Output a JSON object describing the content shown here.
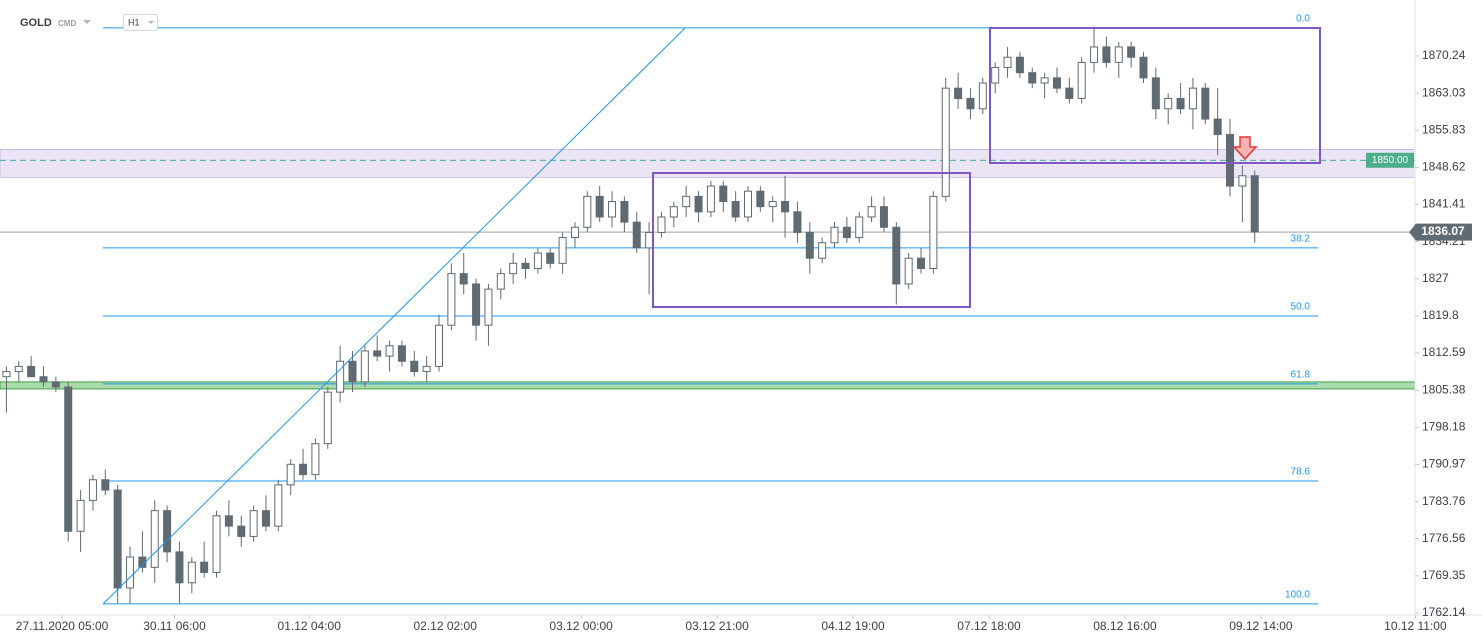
{
  "chart_data": {
    "type": "candlestick",
    "title": "GOLD",
    "subtitle": "CMD",
    "interval": "H1",
    "up_color": "#ffffff",
    "down_color": "#5f6a72",
    "xlim": [
      -0.52,
      114
    ],
    "ylim": [
      1761.75,
      1881.11
    ],
    "yticks": [
      1870.24,
      1863.03,
      1855.83,
      1848.62,
      1841.41,
      1834.21,
      1827.0,
      1819.8,
      1812.59,
      1805.38,
      1798.18,
      1790.97,
      1783.76,
      1776.56,
      1769.35,
      1762.14
    ],
    "xticks": [
      {
        "value": 4.5,
        "label": "27.11.2020 05:00"
      },
      {
        "value": 13.6,
        "label": "30.11 06:00"
      },
      {
        "value": 24.5,
        "label": "01.12 04:00"
      },
      {
        "value": 35.5,
        "label": "02.12 02:00"
      },
      {
        "value": 46.5,
        "label": "03.12 00:00"
      },
      {
        "value": 57.5,
        "label": "03.12 21:00"
      },
      {
        "value": 68.5,
        "label": "04.12 19:00"
      },
      {
        "value": 79.5,
        "label": "07.12 18:00"
      },
      {
        "value": 90.5,
        "label": "08.12 16:00"
      },
      {
        "value": 101.5,
        "label": "09.12 14:00"
      },
      {
        "value": 114,
        "label": "10.12 11:00"
      }
    ],
    "ohlc": [
      [
        1808,
        1810,
        1801,
        1809
      ],
      [
        1809,
        1811,
        1807,
        1810
      ],
      [
        1810,
        1812,
        1808,
        1808
      ],
      [
        1808,
        1810,
        1806,
        1807
      ],
      [
        1807,
        1808,
        1805,
        1806
      ],
      [
        1806,
        1807,
        1776,
        1778
      ],
      [
        1778,
        1786,
        1774,
        1784
      ],
      [
        1784,
        1789,
        1782,
        1788
      ],
      [
        1788,
        1790,
        1785,
        1786
      ],
      [
        1786,
        1787,
        1764,
        1767
      ],
      [
        1767,
        1775,
        1764,
        1773
      ],
      [
        1773,
        1778,
        1770,
        1771
      ],
      [
        1771,
        1784,
        1768,
        1782
      ],
      [
        1782,
        1783,
        1772,
        1774
      ],
      [
        1774,
        1776,
        1764,
        1768
      ],
      [
        1768,
        1773,
        1766,
        1772
      ],
      [
        1772,
        1776,
        1769,
        1770
      ],
      [
        1770,
        1782,
        1769,
        1781
      ],
      [
        1781,
        1784,
        1777,
        1779
      ],
      [
        1779,
        1781,
        1775,
        1777
      ],
      [
        1777,
        1783,
        1776,
        1782
      ],
      [
        1782,
        1785,
        1778,
        1779
      ],
      [
        1779,
        1788,
        1778,
        1787
      ],
      [
        1787,
        1792,
        1785,
        1791
      ],
      [
        1791,
        1794,
        1788,
        1789
      ],
      [
        1789,
        1796,
        1788,
        1795
      ],
      [
        1795,
        1806,
        1794,
        1805
      ],
      [
        1805,
        1814,
        1803,
        1811
      ],
      [
        1811,
        1813,
        1805,
        1807
      ],
      [
        1807,
        1814,
        1806,
        1813
      ],
      [
        1813,
        1816,
        1811,
        1812
      ],
      [
        1812,
        1815,
        1809,
        1814
      ],
      [
        1814,
        1815,
        1810,
        1811
      ],
      [
        1811,
        1813,
        1808,
        1809
      ],
      [
        1809,
        1812,
        1807,
        1810
      ],
      [
        1810,
        1820,
        1809,
        1818
      ],
      [
        1818,
        1830,
        1817,
        1828
      ],
      [
        1828,
        1832,
        1824,
        1826
      ],
      [
        1826,
        1827,
        1815,
        1818
      ],
      [
        1818,
        1826,
        1814,
        1825
      ],
      [
        1825,
        1829,
        1823,
        1828
      ],
      [
        1828,
        1832,
        1826,
        1830
      ],
      [
        1830,
        1831,
        1827,
        1829
      ],
      [
        1829,
        1833,
        1828,
        1832
      ],
      [
        1832,
        1833,
        1829,
        1830
      ],
      [
        1830,
        1836,
        1828,
        1835
      ],
      [
        1835,
        1838,
        1833,
        1837
      ],
      [
        1837,
        1844,
        1836,
        1843
      ],
      [
        1843,
        1845,
        1838,
        1839
      ],
      [
        1839,
        1844,
        1837,
        1842
      ],
      [
        1842,
        1843,
        1836,
        1838
      ],
      [
        1838,
        1840,
        1832,
        1833
      ],
      [
        1833,
        1838,
        1824,
        1836
      ],
      [
        1836,
        1840,
        1835,
        1839
      ],
      [
        1839,
        1842,
        1837,
        1841
      ],
      [
        1841,
        1845,
        1839,
        1843
      ],
      [
        1843,
        1844,
        1838,
        1840
      ],
      [
        1840,
        1846,
        1839,
        1845
      ],
      [
        1845,
        1846,
        1840,
        1842
      ],
      [
        1842,
        1844,
        1838,
        1839
      ],
      [
        1839,
        1845,
        1838,
        1844
      ],
      [
        1844,
        1845,
        1840,
        1841
      ],
      [
        1841,
        1843,
        1838,
        1842
      ],
      [
        1842,
        1847,
        1835,
        1840
      ],
      [
        1840,
        1842,
        1834,
        1836
      ],
      [
        1836,
        1838,
        1828,
        1831
      ],
      [
        1831,
        1835,
        1830,
        1834
      ],
      [
        1834,
        1838,
        1833,
        1837
      ],
      [
        1837,
        1839,
        1834,
        1835
      ],
      [
        1835,
        1840,
        1834,
        1839
      ],
      [
        1839,
        1843,
        1838,
        1841
      ],
      [
        1841,
        1843,
        1836,
        1837
      ],
      [
        1837,
        1838,
        1822,
        1826
      ],
      [
        1826,
        1832,
        1825,
        1831
      ],
      [
        1831,
        1833,
        1828,
        1829
      ],
      [
        1829,
        1844,
        1828,
        1843
      ],
      [
        1843,
        1866,
        1842,
        1864
      ],
      [
        1864,
        1867,
        1860,
        1862
      ],
      [
        1862,
        1864,
        1858,
        1860
      ],
      [
        1860,
        1866,
        1859,
        1865
      ],
      [
        1865,
        1869,
        1863,
        1868
      ],
      [
        1868,
        1872,
        1866,
        1870
      ],
      [
        1870,
        1871,
        1866,
        1867
      ],
      [
        1867,
        1868,
        1864,
        1865
      ],
      [
        1865,
        1867,
        1862,
        1866
      ],
      [
        1866,
        1868,
        1863,
        1864
      ],
      [
        1864,
        1866,
        1861,
        1862
      ],
      [
        1862,
        1870,
        1861,
        1869
      ],
      [
        1869,
        1876,
        1867,
        1872
      ],
      [
        1872,
        1874,
        1868,
        1869
      ],
      [
        1869,
        1873,
        1866,
        1872
      ],
      [
        1872,
        1873,
        1868,
        1870
      ],
      [
        1870,
        1871,
        1865,
        1866
      ],
      [
        1866,
        1868,
        1858,
        1860
      ],
      [
        1860,
        1863,
        1857,
        1862
      ],
      [
        1862,
        1865,
        1859,
        1860
      ],
      [
        1860,
        1866,
        1856,
        1864
      ],
      [
        1864,
        1865,
        1857,
        1858
      ],
      [
        1858,
        1864,
        1851,
        1855
      ],
      [
        1855,
        1858,
        1843,
        1845
      ],
      [
        1845,
        1849,
        1838,
        1847
      ],
      [
        1847,
        1848,
        1834,
        1836.07
      ]
    ],
    "last_price": {
      "value": 1836.07,
      "label": "1836.07"
    },
    "level": {
      "value": 1850,
      "label": "1850.00"
    },
    "fib_levels": [
      {
        "label": "0.0",
        "price": 1875.7
      },
      {
        "label": "38.2",
        "price": 1833.0
      },
      {
        "label": "50.0",
        "price": 1819.78
      },
      {
        "label": "61.8",
        "price": 1806.6
      },
      {
        "label": "78.6",
        "price": 1787.76
      },
      {
        "label": "100.0",
        "price": 1763.9
      }
    ]
  }
}
